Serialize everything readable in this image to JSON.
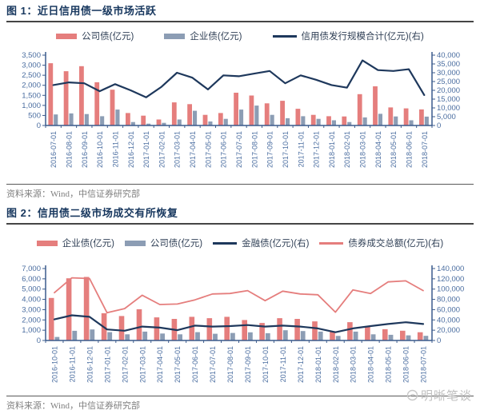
{
  "chart_data": [
    {
      "type": "bar+line",
      "title": "图 1：近日信用债一级市场活跃",
      "source": "资料来源：Wind，中信证券研究部",
      "xlabel": "",
      "ylabel": "",
      "left_axis": {
        "min": 0,
        "max": 3500,
        "step": 500
      },
      "right_axis": {
        "min": 0,
        "max": 40000,
        "step": 5000
      },
      "legend": [
        {
          "label": "公司债(亿元)",
          "type": "bar",
          "color": "#E57E7D"
        },
        {
          "label": "企业债(亿元)",
          "type": "bar",
          "color": "#8C9DB4"
        },
        {
          "label": "信用债发行规模合计(亿元)(右)",
          "type": "line",
          "color": "#1E385C"
        }
      ],
      "categories": [
        "2016-07-01",
        "2016-08-01",
        "2016-09-01",
        "2016-10-01",
        "2016-11-01",
        "2016-12-01",
        "2017-01-01",
        "2017-02-01",
        "2017-03-01",
        "2017-04-01",
        "2017-05-01",
        "2017-06-01",
        "2017-07-01",
        "2017-08-01",
        "2017-09-01",
        "2017-10-01",
        "2017-11-01",
        "2017-12-01",
        "2018-01-01",
        "2018-02-01",
        "2018-03-01",
        "2018-04-01",
        "2018-05-01",
        "2018-06-01",
        "2018-07-01"
      ],
      "bar_series": [
        {
          "name": "公司债(亿元)",
          "color": "#E57E7D",
          "axis": "left",
          "values": [
            3100,
            2700,
            2950,
            2150,
            1780,
            620,
            490,
            300,
            1150,
            1060,
            530,
            620,
            1630,
            1490,
            1100,
            1230,
            830,
            530,
            460,
            450,
            1560,
            1950,
            900,
            850,
            800
          ]
        },
        {
          "name": "企业债(亿元)",
          "color": "#8C9DB4",
          "axis": "left",
          "values": [
            550,
            600,
            570,
            460,
            790,
            170,
            90,
            130,
            300,
            730,
            200,
            330,
            790,
            990,
            530,
            360,
            460,
            330,
            260,
            170,
            400,
            580,
            450,
            260,
            440
          ]
        }
      ],
      "line_series": [
        {
          "name": "信用债发行规模合计(亿元)(右)",
          "color": "#1E385C",
          "axis": "right",
          "width": 2.2,
          "values": [
            23000,
            24500,
            24000,
            19500,
            23500,
            20000,
            16000,
            22000,
            30000,
            27200,
            20500,
            28500,
            28000,
            29500,
            31000,
            24000,
            28500,
            26000,
            23000,
            21500,
            37000,
            31500,
            31000,
            32000,
            17300
          ]
        }
      ]
    },
    {
      "type": "bar+line",
      "title": "图 2：信用债二级市场成交有所恢复",
      "source": "资料来源：Wind，中信证券研究部",
      "xlabel": "",
      "ylabel": "",
      "left_axis": {
        "min": 0,
        "max": 7000,
        "step": 1000
      },
      "right_axis": {
        "min": 0,
        "max": 140000,
        "step": 20000
      },
      "legend": [
        {
          "label": "企业债(亿元)",
          "type": "bar",
          "color": "#E57E7D"
        },
        {
          "label": "公司债(亿元)",
          "type": "bar",
          "color": "#8C9DB4"
        },
        {
          "label": "金融债(亿元)(右)",
          "type": "line",
          "color": "#1E385C"
        },
        {
          "label": "债券成交总额(亿元)(右)",
          "type": "line",
          "color": "#E57E7D"
        }
      ],
      "categories": [
        "2016-10-01",
        "2016-11-01",
        "2016-12-01",
        "2017-01-01",
        "2017-02-01",
        "2017-03-01",
        "2017-04-01",
        "2017-05-01",
        "2017-06-01",
        "2017-07-01",
        "2017-08-01",
        "2017-09-01",
        "2017-10-01",
        "2017-11-01",
        "2017-12-01",
        "2018-01-01",
        "2018-02-01",
        "2018-03-01",
        "2018-04-01",
        "2018-05-01",
        "2018-06-01",
        "2018-07-01"
      ],
      "bar_series": [
        {
          "name": "企业债(亿元)",
          "color": "#E57E7D",
          "axis": "left",
          "values": [
            4140,
            6050,
            6180,
            2650,
            2380,
            3040,
            2250,
            2100,
            2300,
            2170,
            2300,
            1990,
            1700,
            2170,
            2100,
            1860,
            900,
            1780,
            1400,
            1100,
            950,
            800
          ]
        },
        {
          "name": "公司债(亿元)",
          "color": "#8C9DB4",
          "axis": "left",
          "values": [
            340,
            940,
            1070,
            810,
            600,
            865,
            680,
            600,
            810,
            655,
            730,
            790,
            710,
            995,
            920,
            865,
            445,
            865,
            600,
            550,
            500,
            450
          ]
        }
      ],
      "line_series": [
        {
          "name": "金融债(亿元)(右)",
          "color": "#1E385C",
          "axis": "right",
          "width": 2.2,
          "values": [
            41000,
            49000,
            46000,
            21500,
            19000,
            27000,
            25000,
            20000,
            29000,
            27000,
            28000,
            30000,
            27000,
            29000,
            27000,
            23500,
            16000,
            23500,
            28000,
            32000,
            35500,
            32000
          ]
        },
        {
          "name": "债券成交总额(亿元)(右)",
          "color": "#E57E7D",
          "axis": "right",
          "width": 1.8,
          "values": [
            93000,
            122000,
            120500,
            54000,
            62000,
            88000,
            70000,
            71000,
            79000,
            90500,
            91500,
            97000,
            77500,
            96000,
            90500,
            89000,
            55000,
            98500,
            91500,
            114000,
            116000,
            97000
          ]
        }
      ]
    }
  ],
  "watermark": {
    "text": "明晰笔谈"
  },
  "colors": {
    "accent_pink": "#E57E7D",
    "accent_gray_blue": "#8C9DB4",
    "accent_navy": "#1E385C",
    "axis_label_blue": "#4A6DA0",
    "title_navy": "#17375E",
    "source_gray": "#7F7F7F",
    "watermark_gray": "#BFBFBF"
  }
}
